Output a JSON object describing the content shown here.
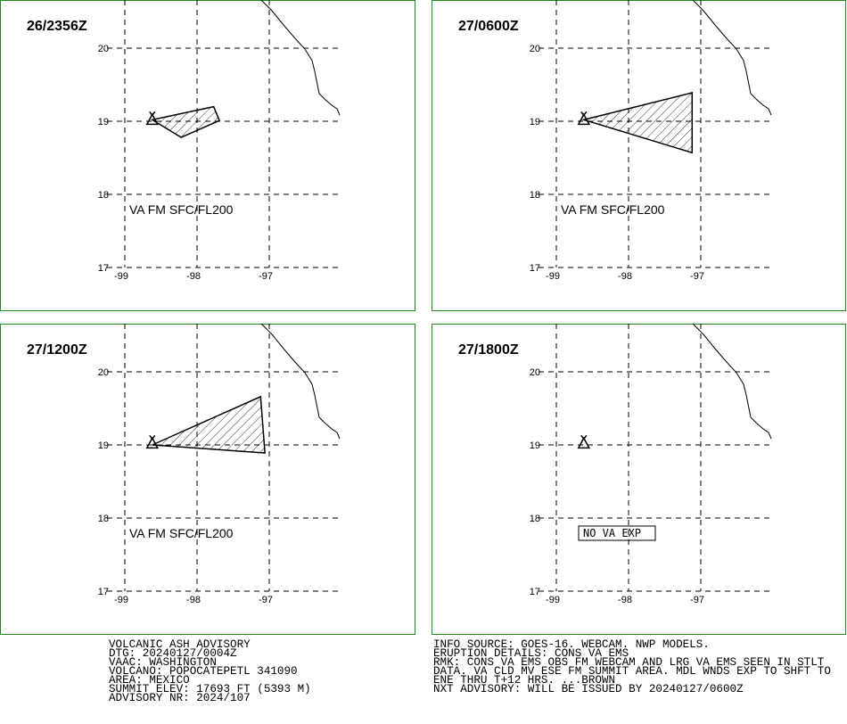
{
  "volcano": [
    -98.62,
    19.02
  ],
  "lat_ticks": [
    17,
    18,
    19,
    20
  ],
  "lon_ticks": [
    -99,
    -98,
    -97
  ],
  "panels": [
    {
      "time": "26/2356Z",
      "label": "VA FM SFC/FL200",
      "polygon": [
        [
          -98.62,
          19.02
        ],
        [
          -97.77,
          19.2
        ],
        [
          -97.69,
          19.01
        ],
        [
          -98.22,
          18.78
        ]
      ]
    },
    {
      "time": "27/0600Z",
      "label": "VA FM SFC/FL200",
      "polygon": [
        [
          -98.62,
          19.02
        ],
        [
          -97.12,
          19.39
        ],
        [
          -97.12,
          18.57
        ]
      ]
    },
    {
      "time": "27/1200Z",
      "label": "VA FM SFC/FL200",
      "polygon": [
        [
          -98.62,
          19.0
        ],
        [
          -97.12,
          19.66
        ],
        [
          -97.06,
          18.89
        ]
      ]
    },
    {
      "time": "27/1800Z",
      "label": "NO VA EXP",
      "polygon": null
    }
  ],
  "footer_left": [
    "VOLCANIC ASH ADVISORY",
    "DTG: 20240127/0004Z",
    "VAAC: WASHINGTON",
    "VOLCANO: POPOCATEPETL 341090",
    "AREA: MEXICO",
    "SUMMIT ELEV: 17693 FT (5393 M)",
    "ADVISORY NR: 2024/107"
  ],
  "footer_right": [
    "INFO SOURCE: GOES-16. WEBCAM. NWP MODELS.",
    "ERUPTION DETAILS: CONS VA EMS",
    "RMK: CONS VA EMS OBS FM WEBCAM AND LRG VA EMS SEEN IN STLT",
    "DATA. VA CLD MV ESE FM SUMMIT AREA. MDL WNDS EXP TO SHFT TO",
    "ENE THRU T+12 HRS. ...BROWN",
    "NXT ADVISORY: WILL BE ISSUED BY 20240127/0600Z"
  ]
}
